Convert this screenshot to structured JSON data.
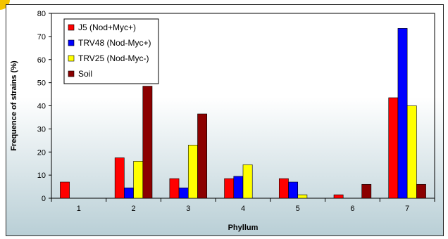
{
  "chart_data": {
    "type": "bar",
    "title": "",
    "xlabel": "Phyllum",
    "ylabel": "Frequence of strains (%)",
    "categories": [
      "1",
      "2",
      "3",
      "4",
      "5",
      "6",
      "7"
    ],
    "ylim": [
      0,
      80
    ],
    "yticks": [
      "0",
      "10",
      "20",
      "30",
      "40",
      "50",
      "60",
      "70",
      "80"
    ],
    "grid": false,
    "legend_position": "top-left",
    "series": [
      {
        "name": "J5 (Nod+Myc+)",
        "color": "#ff0000",
        "values": [
          7,
          17.5,
          8.5,
          8.5,
          8.5,
          1.5,
          43.5
        ]
      },
      {
        "name": "TRV48 (Nod-Myc+)",
        "color": "#0000ff",
        "values": [
          0,
          4.5,
          4.5,
          9.5,
          7,
          0,
          73.5
        ]
      },
      {
        "name": "TRV25 (Nod-Myc-)",
        "color": "#ffff00",
        "values": [
          0,
          16,
          23,
          14.5,
          1.5,
          0,
          40
        ]
      },
      {
        "name": "Soil",
        "color": "#8b0000",
        "values": [
          0,
          48.5,
          36.5,
          0,
          0,
          6,
          6
        ]
      }
    ]
  }
}
